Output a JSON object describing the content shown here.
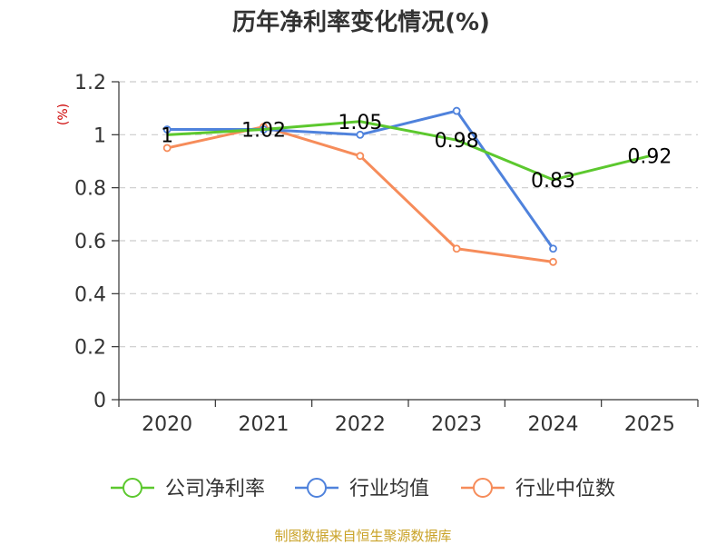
{
  "chart_data": {
    "type": "line",
    "title": "历年净利率变化情况(%)",
    "ylabel": "(%)",
    "xlabel": "",
    "categories": [
      "2020",
      "2021",
      "2022",
      "2023",
      "2024",
      "2025"
    ],
    "ylim": [
      0,
      1.2
    ],
    "yticks": [
      "0",
      "0.2",
      "0.4",
      "0.6",
      "0.8",
      "1",
      "1.2"
    ],
    "ytick_values": [
      0,
      0.2,
      0.4,
      0.6,
      0.8,
      1.0,
      1.2
    ],
    "grid": true,
    "legend_position": "bottom",
    "series": [
      {
        "name": "公司净利率",
        "color": "#5cc82e",
        "values": [
          1.0,
          1.02,
          1.05,
          0.98,
          0.83,
          0.92
        ],
        "labels": [
          "1",
          "1.02",
          "1.05",
          "0.98",
          "0.83",
          "0.92"
        ],
        "show_labels": true,
        "markers": false
      },
      {
        "name": "行业均值",
        "color": "#4f82dc",
        "values": [
          1.02,
          1.02,
          1.0,
          1.09,
          0.57,
          null
        ],
        "show_labels": false,
        "markers": true
      },
      {
        "name": "行业中位数",
        "color": "#f68c5a",
        "values": [
          0.95,
          1.03,
          0.92,
          0.57,
          0.52,
          null
        ],
        "show_labels": false,
        "markers": true
      }
    ]
  },
  "source_text": "制图数据来自恒生聚源数据库"
}
